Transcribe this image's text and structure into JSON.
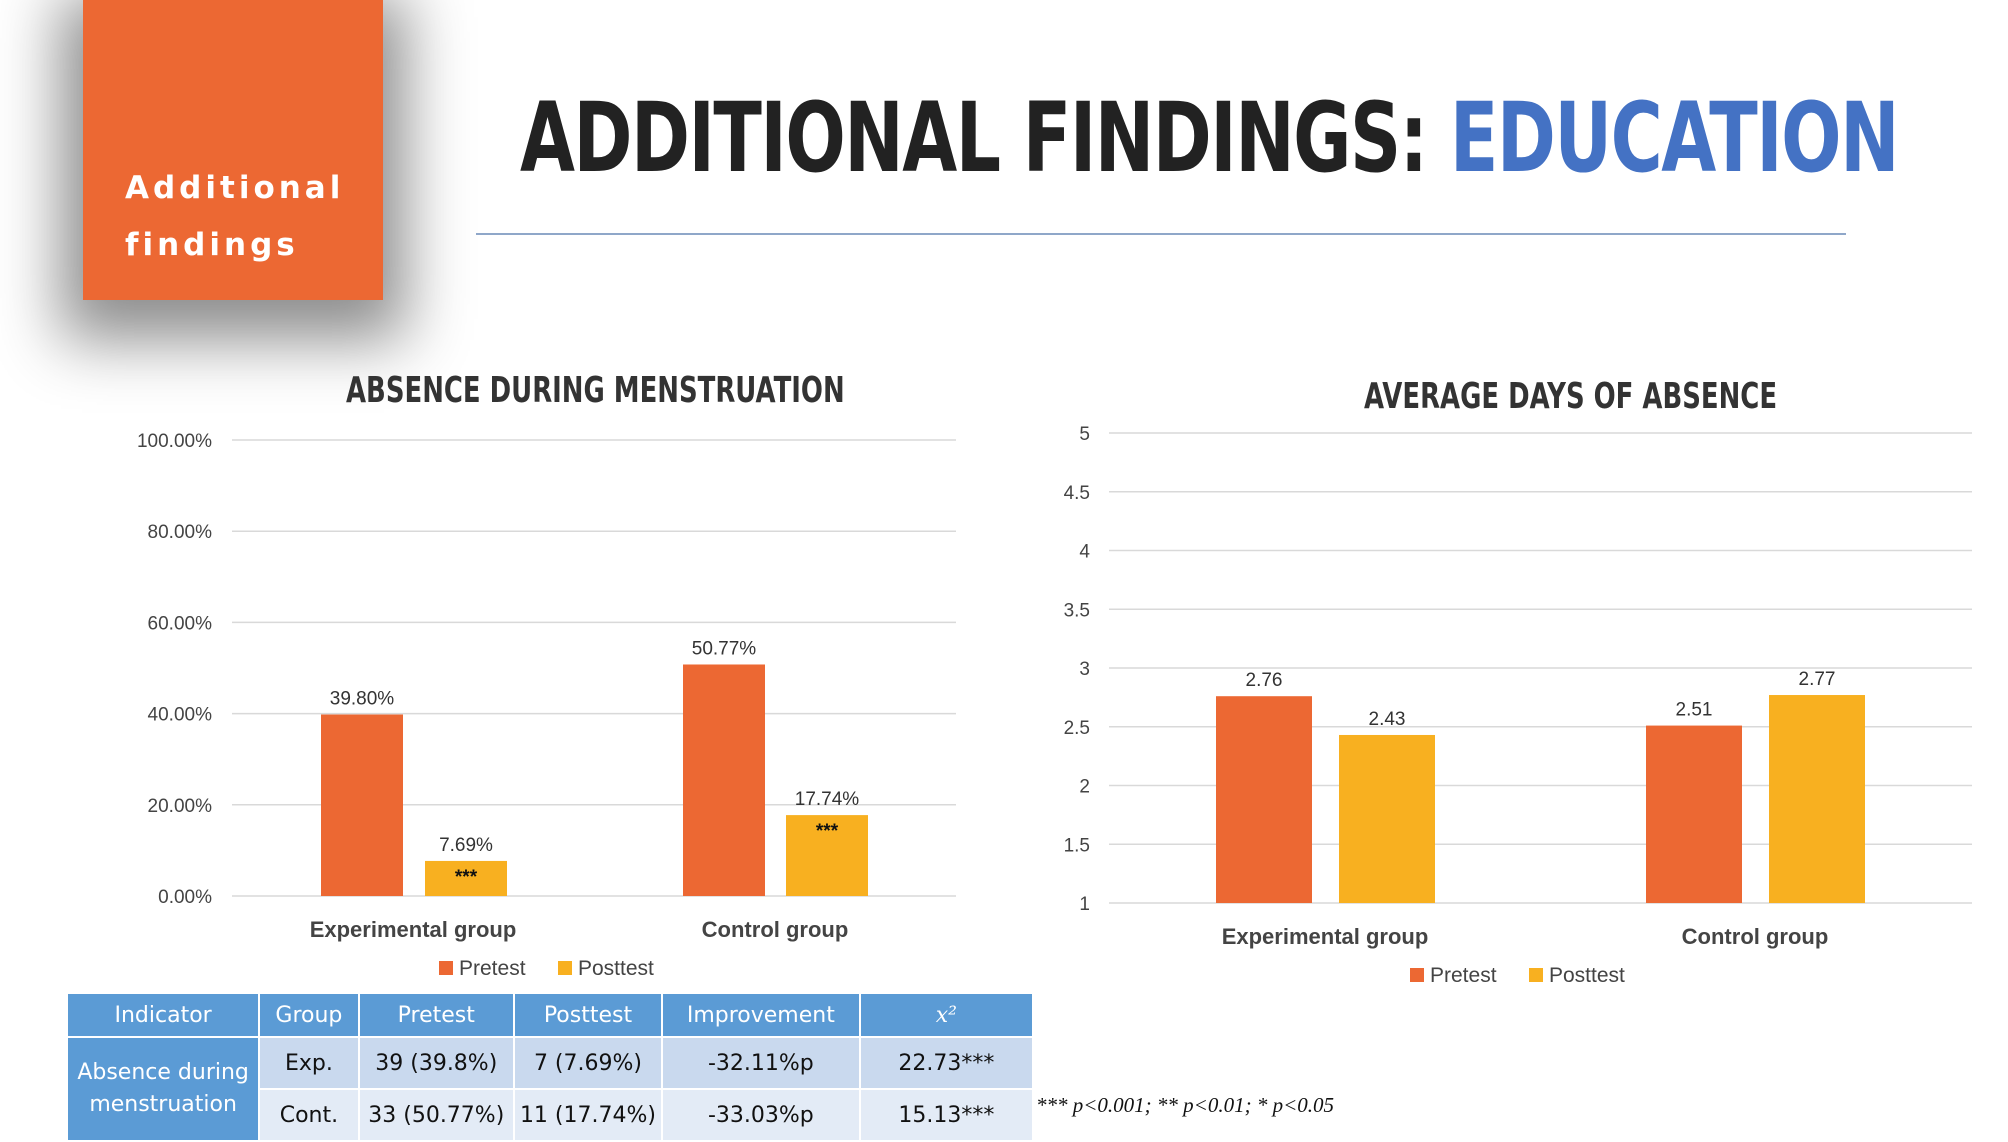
{
  "tag": {
    "line1": "Additional",
    "line2": "findings"
  },
  "header": {
    "title_main": "ADDITIONAL FINDINGS: ",
    "title_accent": "EDUCATION"
  },
  "colors": {
    "pretest": "#EC6833",
    "posttest": "#F8B020",
    "accent": "#4472C4",
    "table_header": "#5B9BD5"
  },
  "chart_data": [
    {
      "type": "bar",
      "title": "ABSENCE DURING MENSTRUATION",
      "categories": [
        "Experimental group",
        "Control group"
      ],
      "series": [
        {
          "name": "Pretest",
          "values": [
            39.8,
            50.77
          ]
        },
        {
          "name": "Posttest",
          "values": [
            7.69,
            17.74
          ]
        }
      ],
      "data_labels": [
        [
          "39.80%",
          "50.77%"
        ],
        [
          "7.69%",
          "17.74%"
        ]
      ],
      "significance": [
        [
          "",
          ""
        ],
        [
          "***",
          "***"
        ]
      ],
      "ylim": [
        0,
        100
      ],
      "yticks": [
        "0.00%",
        "20.00%",
        "40.00%",
        "60.00%",
        "80.00%",
        "100.00%"
      ],
      "grid": true,
      "legend": "bottom"
    },
    {
      "type": "bar",
      "title": "AVERAGE DAYS OF ABSENCE",
      "categories": [
        "Experimental group",
        "Control group"
      ],
      "series": [
        {
          "name": "Pretest",
          "values": [
            2.76,
            2.51
          ]
        },
        {
          "name": "Posttest",
          "values": [
            2.43,
            2.77
          ]
        }
      ],
      "data_labels": [
        [
          "2.76",
          "2.51"
        ],
        [
          "2.43",
          "2.77"
        ]
      ],
      "ylim": [
        1,
        5
      ],
      "yticks": [
        "1",
        "1.5",
        "2",
        "2.5",
        "3",
        "3.5",
        "4",
        "4.5",
        "5"
      ],
      "grid": true,
      "legend": "bottom"
    }
  ],
  "table": {
    "headers": [
      "Indicator",
      "Group",
      "Pretest",
      "Posttest",
      "Improvement",
      "x²"
    ],
    "indicator": "Absence during menstruation",
    "rows": [
      {
        "group": "Exp.",
        "pretest": "39 (39.8%)",
        "posttest": "7 (7.69%)",
        "improvement": "-32.11%p",
        "chi2": "22.73***"
      },
      {
        "group": "Cont.",
        "pretest": "33 (50.77%)",
        "posttest": "11 (17.74%)",
        "improvement": "-33.03%p",
        "chi2": "15.13***"
      }
    ]
  },
  "footnote": "*** p<0.001; ** p<0.01; * p<0.05"
}
